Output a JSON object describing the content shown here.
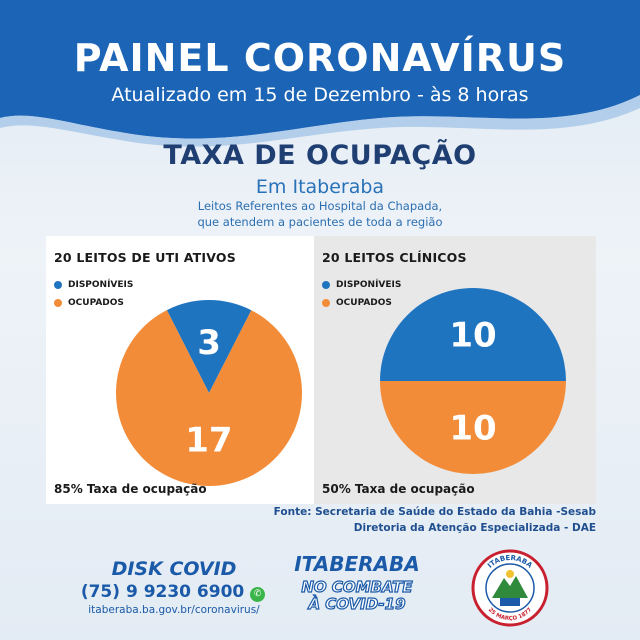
{
  "header": {
    "title": "PAINEL CORONAVÍRUS",
    "subtitle": "Atualizado em 15 de Dezembro - às 8 horas"
  },
  "section": {
    "title": "TAXA DE OCUPAÇÃO",
    "subtitle": "Em Itaberaba",
    "desc_line1": "Leitos Referentes ao Hospital da Chapada,",
    "desc_line2": "que atendem a pacientes de toda a região"
  },
  "colors": {
    "blue": "#1f74c0",
    "orange": "#f28c38",
    "header_blue": "#1b64b6"
  },
  "chart_data": [
    {
      "type": "pie",
      "title": "20 LEITOS DE UTI ATIVOS",
      "legend": [
        "DISPONÍVEIS",
        "OCUPADOS"
      ],
      "categories": [
        "DISPONÍVEIS",
        "OCUPADOS"
      ],
      "values": [
        3,
        17
      ],
      "footer": "85% Taxa de ocupação"
    },
    {
      "type": "pie",
      "title": "20 LEITOS CLÍNICOS",
      "legend": [
        "DISPONÍVEIS",
        "OCUPADOS"
      ],
      "categories": [
        "DISPONÍVEIS",
        "OCUPADOS"
      ],
      "values": [
        10,
        10
      ],
      "footer": "50% Taxa de ocupação"
    }
  ],
  "source": {
    "line1": "Fonte: Secretaria de Saúde do Estado da Bahia -Sesab",
    "line2": "Diretoria da Atenção Especializada - DAE"
  },
  "footer": {
    "disk_title": "DISK COVID",
    "phone": "(75) 9 9230 6900",
    "url": "itaberaba.ba.gov.br/coronavirus/",
    "city": "ITABERABA",
    "slogan_line1": "NO COMBATE",
    "slogan_line2": "À COVID-19",
    "crest_top": "ITABERABA",
    "crest_bottom": "25 MARÇO 1877"
  }
}
